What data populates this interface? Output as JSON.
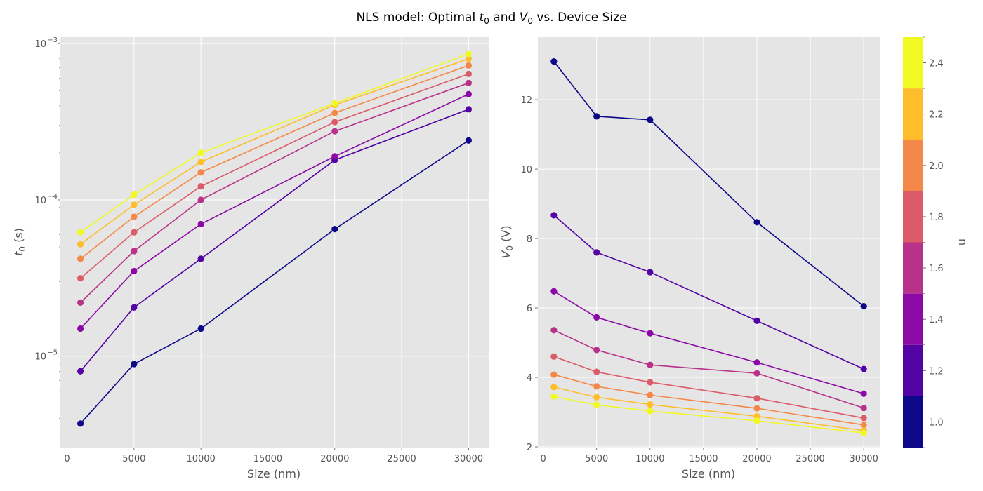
{
  "figure": {
    "title_prefix": "NLS model: Optimal ",
    "title_t": "t",
    "title_t_sub": "0",
    "title_mid": " and ",
    "title_v": "V",
    "title_v_sub": "0",
    "title_suffix": " vs. Device Size"
  },
  "colors": {
    "panel_bg": "#e5e5e5",
    "grid": "#ffffff",
    "series": [
      "#0d0887",
      "#5302a3",
      "#8b0aa5",
      "#b83289",
      "#db5c68",
      "#f48849",
      "#febd2a",
      "#f0f921"
    ]
  },
  "chart_data": [
    {
      "type": "line",
      "xlabel": "Size (nm)",
      "ylabel_symbol": "t",
      "ylabel_sub": "0",
      "ylabel_unit": " (s)",
      "yscale": "log",
      "xlim": [
        -500,
        31500
      ],
      "ylim": [
        2.6e-06,
        0.0011
      ],
      "x_ticks": [
        0,
        5000,
        10000,
        15000,
        20000,
        25000,
        30000
      ],
      "y_major_ticks": [
        {
          "value": 1e-05,
          "base": "10",
          "exp": "−5"
        },
        {
          "value": 0.0001,
          "base": "10",
          "exp": "−4"
        },
        {
          "value": 0.001,
          "base": "10",
          "exp": "−3"
        }
      ],
      "grid": true,
      "x": [
        1000,
        5000,
        10000,
        20000,
        30000
      ],
      "series": [
        {
          "n": 1.0,
          "values": [
            3.7e-06,
            8.9e-06,
            1.5e-05,
            6.5e-05,
            0.00024
          ]
        },
        {
          "n": 1.2,
          "values": [
            8e-06,
            2.05e-05,
            4.2e-05,
            0.00018,
            0.00038
          ]
        },
        {
          "n": 1.4,
          "values": [
            1.5e-05,
            3.5e-05,
            7e-05,
            0.00019,
            0.000475
          ]
        },
        {
          "n": 1.6,
          "values": [
            2.2e-05,
            4.7e-05,
            0.0001,
            0.000275,
            0.00056
          ]
        },
        {
          "n": 1.8,
          "values": [
            3.15e-05,
            6.2e-05,
            0.000122,
            0.000315,
            0.00064
          ]
        },
        {
          "n": 2.0,
          "values": [
            4.2e-05,
            7.8e-05,
            0.00015,
            0.00036,
            0.000725
          ]
        },
        {
          "n": 2.2,
          "values": [
            5.2e-05,
            9.3e-05,
            0.000175,
            0.000405,
            0.0008
          ]
        },
        {
          "n": 2.4,
          "values": [
            6.2e-05,
            0.000108,
            0.0002,
            0.000415,
            0.00086
          ]
        }
      ]
    },
    {
      "type": "line",
      "xlabel": "Size (nm)",
      "ylabel_symbol": "V",
      "ylabel_sub": "0",
      "ylabel_unit": " (V)",
      "yscale": "linear",
      "xlim": [
        -500,
        31500
      ],
      "ylim": [
        1.98,
        13.8
      ],
      "x_ticks": [
        0,
        5000,
        10000,
        15000,
        20000,
        25000,
        30000
      ],
      "y_ticks": [
        2,
        4,
        6,
        8,
        10,
        12
      ],
      "grid": true,
      "x": [
        1000,
        5000,
        10000,
        20000,
        30000
      ],
      "series": [
        {
          "n": 1.0,
          "values": [
            13.1,
            11.52,
            11.42,
            8.47,
            6.05
          ]
        },
        {
          "n": 1.2,
          "values": [
            8.67,
            7.6,
            7.03,
            5.63,
            4.24
          ]
        },
        {
          "n": 1.4,
          "values": [
            6.48,
            5.73,
            5.27,
            4.43,
            3.53
          ]
        },
        {
          "n": 1.6,
          "values": [
            5.36,
            4.79,
            4.36,
            4.12,
            3.12
          ]
        },
        {
          "n": 1.8,
          "values": [
            4.6,
            4.16,
            3.86,
            3.4,
            2.83
          ]
        },
        {
          "n": 2.0,
          "values": [
            4.08,
            3.74,
            3.49,
            3.11,
            2.63
          ]
        },
        {
          "n": 2.2,
          "values": [
            3.72,
            3.43,
            3.22,
            2.88,
            2.47
          ]
        },
        {
          "n": 2.4,
          "values": [
            3.45,
            3.21,
            3.03,
            2.75,
            2.4
          ]
        }
      ]
    }
  ],
  "colorbar": {
    "label": "n",
    "levels": [
      1.0,
      1.2,
      1.4,
      1.6,
      1.8,
      2.0,
      2.2,
      2.4
    ],
    "tick_labels": [
      "1.0",
      "1.2",
      "1.4",
      "1.6",
      "1.8",
      "2.0",
      "2.2",
      "2.4"
    ],
    "range": [
      0.9,
      2.5
    ]
  }
}
